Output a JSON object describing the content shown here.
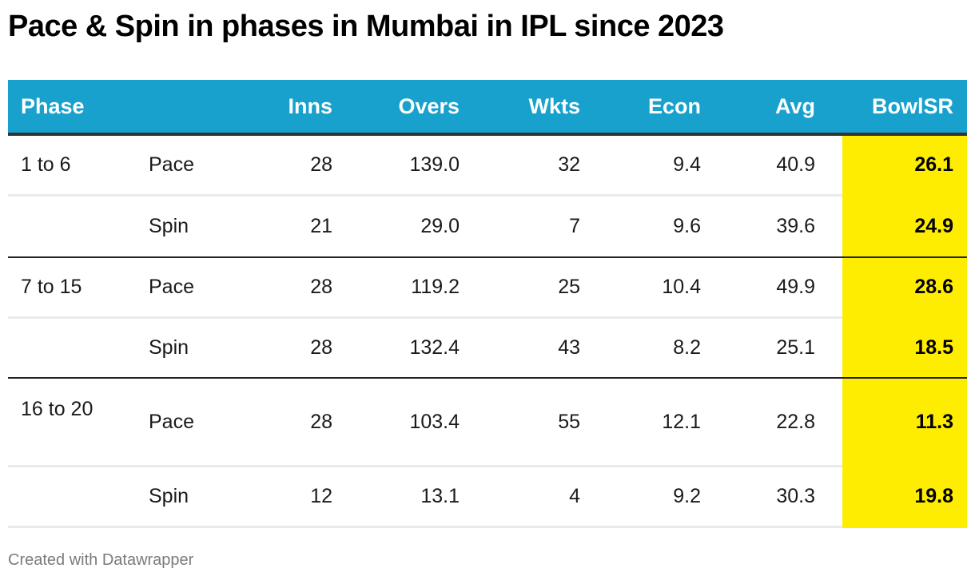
{
  "title": "Pace & Spin in phases in Mumbai in IPL since 2023",
  "footer": "Created with Datawrapper",
  "colors": {
    "header_bg": "#18a1cd",
    "highlight": "#feed00",
    "header_text": "#ffffff"
  },
  "chart_data": {
    "type": "table",
    "title": "Pace & Spin in phases in Mumbai in IPL since 2023",
    "columns": [
      "Phase",
      "",
      "Inns",
      "Overs",
      "Wkts",
      "Econ",
      "Avg",
      "BowlSR"
    ],
    "highlight_column": "BowlSR",
    "rows": [
      {
        "phase": "1 to 6",
        "type": "Pace",
        "inns": "28",
        "overs": "139.0",
        "wkts": "32",
        "econ": "9.4",
        "avg": "40.9",
        "bowlsr": "26.1"
      },
      {
        "phase": "",
        "type": "Spin",
        "inns": "21",
        "overs": "29.0",
        "wkts": "7",
        "econ": "9.6",
        "avg": "39.6",
        "bowlsr": "24.9"
      },
      {
        "phase": "7 to 15",
        "type": "Pace",
        "inns": "28",
        "overs": "119.2",
        "wkts": "25",
        "econ": "10.4",
        "avg": "49.9",
        "bowlsr": "28.6"
      },
      {
        "phase": "",
        "type": "Spin",
        "inns": "28",
        "overs": "132.4",
        "wkts": "43",
        "econ": "8.2",
        "avg": "25.1",
        "bowlsr": "18.5"
      },
      {
        "phase": "16 to 20",
        "type": "Pace",
        "inns": "28",
        "overs": "103.4",
        "wkts": "55",
        "econ": "12.1",
        "avg": "22.8",
        "bowlsr": "11.3"
      },
      {
        "phase": "",
        "type": "Spin",
        "inns": "12",
        "overs": "13.1",
        "wkts": "4",
        "econ": "9.2",
        "avg": "30.3",
        "bowlsr": "19.8"
      }
    ]
  }
}
